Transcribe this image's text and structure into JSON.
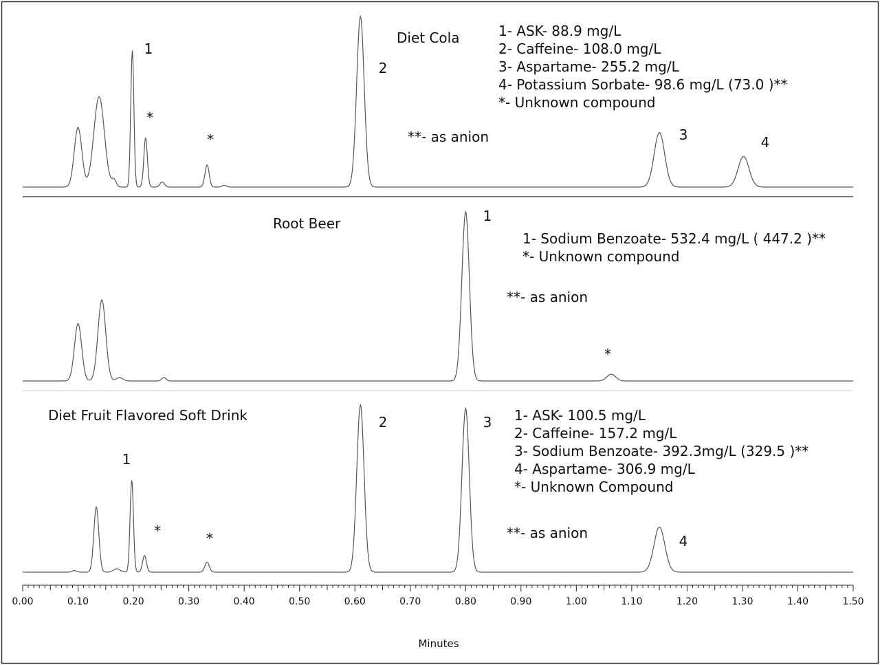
{
  "chart_data": {
    "type": "line",
    "x_axis": {
      "label": "Minutes",
      "xlim": [
        0.0,
        1.5
      ],
      "ticks": [
        "0.00",
        "0.10",
        "0.20",
        "0.30",
        "0.40",
        "0.50",
        "0.60",
        "0.70",
        "0.80",
        "0.90",
        "1.00",
        "1.10",
        "1.20",
        "1.30",
        "1.40",
        "1.50"
      ]
    },
    "panels": [
      {
        "title": "Diet Cola",
        "legend": [
          "1- ASK- 88.9 mg/L",
          "2- Caffeine- 108.0 mg/L",
          "3- Aspartame- 255.2 mg/L",
          "4- Potassium Sorbate- 98.6 mg/L (73.0 )**",
          "*- Unknown compound"
        ],
        "note": "**- as anion",
        "peak_labels": [
          {
            "text": "1",
            "x": 0.198
          },
          {
            "text": "*",
            "x": 0.222
          },
          {
            "text": "*",
            "x": 0.333
          },
          {
            "text": "2",
            "x": 0.61
          },
          {
            "text": "3",
            "x": 1.15
          },
          {
            "text": "4",
            "x": 1.302
          }
        ],
        "peaks": [
          {
            "x": 0.1,
            "h": 0.35
          },
          {
            "x": 0.138,
            "h": 0.53
          },
          {
            "x": 0.165,
            "h": 0.04
          },
          {
            "x": 0.198,
            "h": 0.8
          },
          {
            "x": 0.222,
            "h": 0.29
          },
          {
            "x": 0.252,
            "h": 0.03
          },
          {
            "x": 0.333,
            "h": 0.13
          },
          {
            "x": 0.364,
            "h": 0.01
          },
          {
            "x": 0.61,
            "h": 1.0
          },
          {
            "x": 1.15,
            "h": 0.32
          },
          {
            "x": 1.302,
            "h": 0.18
          }
        ]
      },
      {
        "title": "Root Beer",
        "legend": [
          "1- Sodium Benzoate- 532.4 mg/L ( 447.2 )**",
          "*- Unknown compound"
        ],
        "note": "**- as anion",
        "peak_labels": [
          {
            "text": "1",
            "x": 0.8
          },
          {
            "text": "*",
            "x": 1.063
          }
        ],
        "peaks": [
          {
            "x": 0.1,
            "h": 0.34
          },
          {
            "x": 0.143,
            "h": 0.48
          },
          {
            "x": 0.175,
            "h": 0.02
          },
          {
            "x": 0.255,
            "h": 0.02
          },
          {
            "x": 0.8,
            "h": 1.0
          },
          {
            "x": 1.063,
            "h": 0.04
          }
        ]
      },
      {
        "title": "Diet Fruit Flavored Soft Drink",
        "legend": [
          "1- ASK- 100.5 mg/L",
          "2- Caffeine- 157.2 mg/L",
          "3- Sodium Benzoate- 392.3mg/L (329.5 )**",
          "4- Aspartame- 306.9 mg/L",
          "*- Unknown Compound"
        ],
        "note": "**- as anion",
        "peak_labels": [
          {
            "text": "1",
            "x": 0.197
          },
          {
            "text": "*",
            "x": 0.245
          },
          {
            "text": "*",
            "x": 0.338
          },
          {
            "text": "2",
            "x": 0.61
          },
          {
            "text": "3",
            "x": 0.8
          },
          {
            "text": "4",
            "x": 1.15
          }
        ],
        "peaks": [
          {
            "x": 0.093,
            "h": 0.01
          },
          {
            "x": 0.133,
            "h": 0.39
          },
          {
            "x": 0.17,
            "h": 0.02
          },
          {
            "x": 0.197,
            "h": 0.55
          },
          {
            "x": 0.22,
            "h": 0.1
          },
          {
            "x": 0.333,
            "h": 0.06
          },
          {
            "x": 0.61,
            "h": 1.0
          },
          {
            "x": 0.8,
            "h": 0.98
          },
          {
            "x": 1.15,
            "h": 0.27
          }
        ]
      }
    ]
  }
}
